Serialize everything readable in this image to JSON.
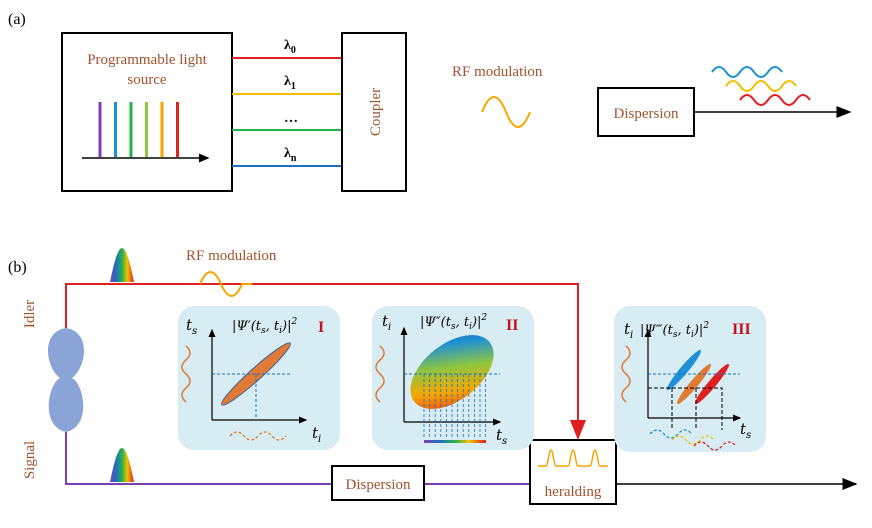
{
  "panel_a": {
    "label": "(a)",
    "source_line1": "Programmable light",
    "source_line2": "source",
    "lambda0": "λ",
    "lambda0_sub": "0",
    "lambda1": "λ",
    "lambda1_sub": "1",
    "ellipsis": "…",
    "lambdan": "λ",
    "lambdan_sub": "n",
    "coupler": "Coupler",
    "rf": "RF modulation",
    "dispersion": "Dispersion",
    "spectrum_colors": [
      "#7b3fb5",
      "#1e90d6",
      "#22b14c",
      "#8dc63f",
      "#f7a600",
      "#e02020"
    ],
    "channel_colors": [
      "#e02020",
      "#f2c000",
      "#22b14c",
      "#1e6fbf"
    ]
  },
  "panel_b": {
    "label": "(b)",
    "rf": "RF modulation",
    "idler": "Idler",
    "signal": "Signal",
    "dispersion": "Dispersion",
    "heralding": "heralding",
    "inset1": {
      "roman": "I",
      "formula": "|Ψ′(t",
      "formula_s": "s",
      "formula_mid": ", t",
      "formula_i": "i",
      "formula_end": ")|",
      "formula_pow": "2",
      "ylab": "t",
      "ylab_sub": "s",
      "xlab": "t",
      "xlab_sub": "i"
    },
    "inset2": {
      "roman": "II",
      "formula": "|Ψ″(t",
      "formula_s": "s",
      "formula_mid": ", t",
      "formula_i": "i",
      "formula_end": ")|",
      "formula_pow": "2",
      "ylab": "t",
      "ylab_sub": "i",
      "xlab": "t",
      "xlab_sub": "s"
    },
    "inset3": {
      "roman": "III",
      "formula": "|Ψ‴(t",
      "formula_s": "s",
      "formula_mid": ", t",
      "formula_i": "i",
      "formula_end": ")|",
      "formula_pow": "2",
      "ylab": "t",
      "ylab_sub": "i",
      "xlab": "t",
      "xlab_sub": "s"
    },
    "idler_color": "#e02020",
    "signal_color": "#7b3fb5",
    "source_color": "#8aa4d8",
    "inset_bg": "#d7ecf3",
    "accent_red": "#c0141a"
  }
}
